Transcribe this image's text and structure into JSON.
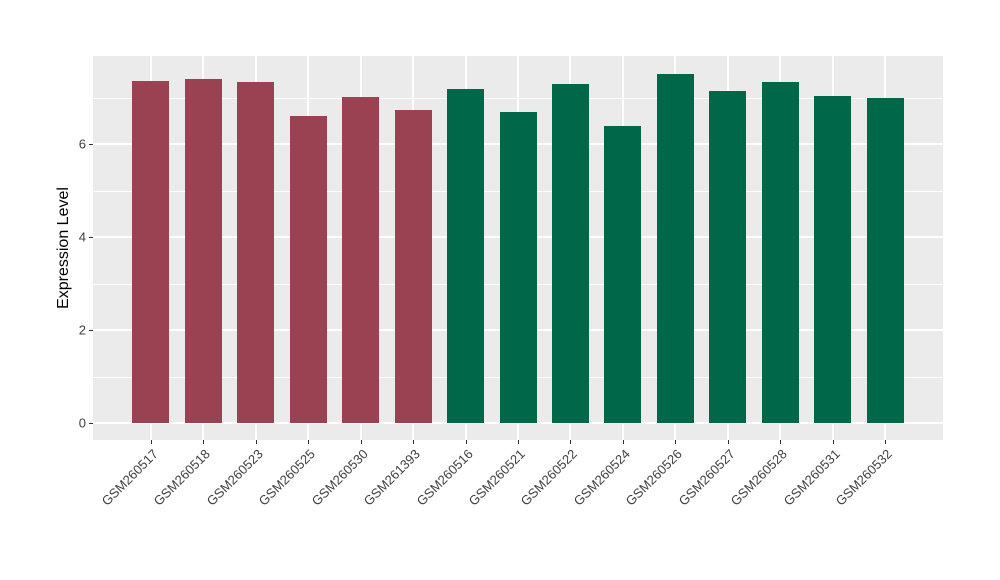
{
  "chart_data": {
    "type": "bar",
    "title": "",
    "xlabel": "",
    "ylabel": "Expression Level",
    "categories": [
      "GSM260517",
      "GSM260518",
      "GSM260523",
      "GSM260525",
      "GSM260530",
      "GSM261393",
      "GSM260516",
      "GSM260521",
      "GSM260522",
      "GSM260524",
      "GSM260526",
      "GSM260527",
      "GSM260528",
      "GSM260531",
      "GSM260532"
    ],
    "values": [
      7.36,
      7.4,
      7.33,
      6.61,
      7.02,
      6.73,
      7.18,
      6.68,
      7.29,
      6.38,
      7.5,
      7.15,
      7.33,
      7.04,
      7.0
    ],
    "groups": [
      "maroon",
      "maroon",
      "maroon",
      "maroon",
      "maroon",
      "maroon",
      "green",
      "green",
      "green",
      "green",
      "green",
      "green",
      "green",
      "green",
      "green"
    ],
    "group_colors": {
      "maroon": "#9A4252",
      "green": "#006848"
    },
    "ylim": [
      0,
      7.87
    ],
    "yticks_major": [
      0,
      2,
      4,
      6
    ],
    "yticks_minor": [
      1,
      3,
      5,
      7
    ],
    "legend_position": "none",
    "grid": "white major and minor horizontal lines, white vertical lines at category centers",
    "panel_bg": "#EBEBEB",
    "grid_color": "#FFFFFF",
    "axis_text_color": "#404040",
    "tick_mark_color": "#333333"
  }
}
